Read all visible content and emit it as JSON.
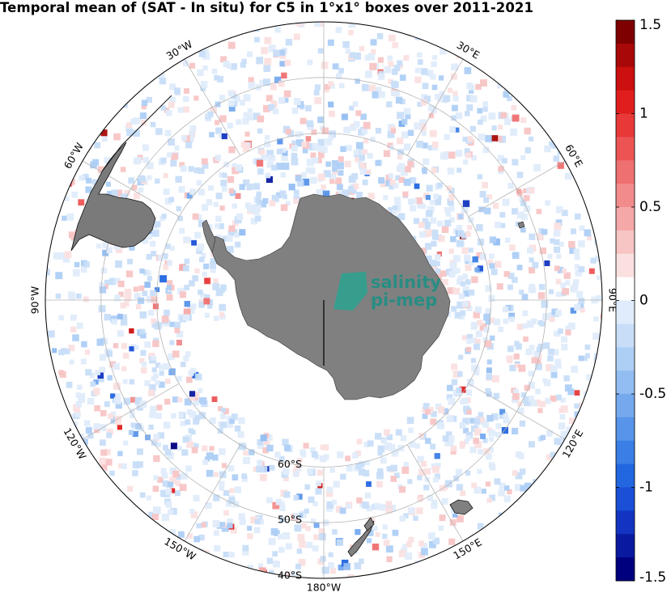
{
  "title": "Temporal mean of (SAT - In situ) for C5 in 1°x1° boxes over 2011-2021",
  "watermark": {
    "line1": "salinity",
    "line2": "pi-mep"
  },
  "longitude_labels": [
    {
      "text": "30°E",
      "lon": 30
    },
    {
      "text": "60°E",
      "lon": 60
    },
    {
      "text": "90°E",
      "lon": 90
    },
    {
      "text": "120°E",
      "lon": 120
    },
    {
      "text": "150°E",
      "lon": 150
    },
    {
      "text": "180°W",
      "lon": 180
    },
    {
      "text": "150°W",
      "lon": -150
    },
    {
      "text": "120°W",
      "lon": -120
    },
    {
      "text": "90°W",
      "lon": -90
    },
    {
      "text": "60°W",
      "lon": -60
    },
    {
      "text": "30°W",
      "lon": -30
    }
  ],
  "latitude_labels": [
    {
      "text": "60°S",
      "lat": -60
    },
    {
      "text": "50°S",
      "lat": -50
    },
    {
      "text": "40°S",
      "lat": -40
    }
  ],
  "colorbar": {
    "min": -1.5,
    "max": 1.5,
    "ticks": [
      {
        "value": 1.5,
        "label": "1.5"
      },
      {
        "value": 1,
        "label": "1"
      },
      {
        "value": 0.5,
        "label": "0.5"
      },
      {
        "value": 0,
        "label": "0"
      },
      {
        "value": -0.5,
        "label": "-0.5"
      },
      {
        "value": -1,
        "label": "-1"
      },
      {
        "value": -1.5,
        "label": "-1.5"
      }
    ],
    "colors": [
      "#00007f",
      "#0a1aa0",
      "#1234c0",
      "#1a4fd6",
      "#2266e0",
      "#3a7ee6",
      "#5794ea",
      "#74a9ee",
      "#92bdf2",
      "#aecff5",
      "#c8def8",
      "#e0ecfb",
      "#ffffff",
      "#fbe0e0",
      "#f8c5c5",
      "#f5a8a8",
      "#f28c8c",
      "#ef7070",
      "#ec5454",
      "#e83838",
      "#e01e1e",
      "#cc0f0f",
      "#a80808",
      "#7f0000"
    ]
  },
  "colors": {
    "land": "#808080",
    "grid": "#b4b4b4",
    "frame": "#000000"
  }
}
